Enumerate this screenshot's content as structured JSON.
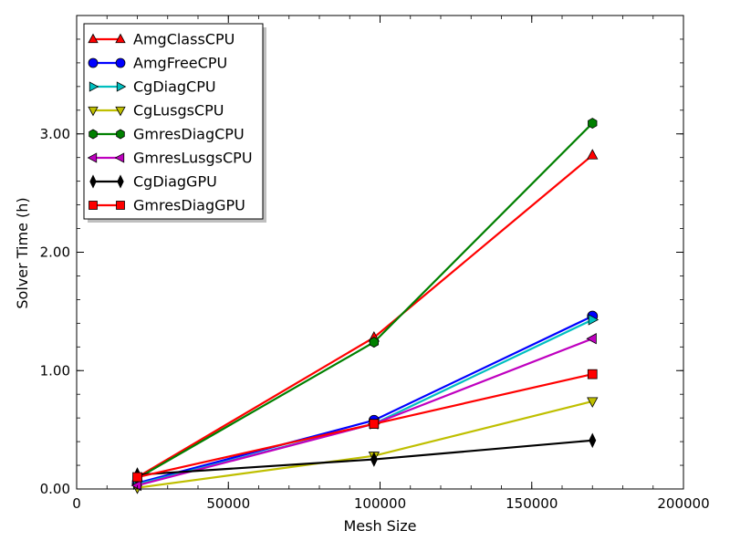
{
  "chart_data": {
    "type": "line",
    "title": "",
    "xlabel": "Mesh Size",
    "ylabel": "Solver Time (h)",
    "xlim": [
      0,
      200000
    ],
    "ylim": [
      0,
      4.0
    ],
    "x_ticks": [
      0,
      50000,
      100000,
      150000,
      200000
    ],
    "x_tick_labels": [
      "0",
      "50000",
      "100000",
      "150000",
      "200000"
    ],
    "y_ticks": [
      0,
      1,
      2,
      3
    ],
    "y_tick_labels": [
      "0.00",
      "1.00",
      "2.00",
      "3.00"
    ],
    "grid": false,
    "legend_position": "top-left",
    "x": [
      20000,
      98000,
      170000
    ],
    "series": [
      {
        "name": "AmgClassCPU",
        "values": [
          0.1,
          1.28,
          2.82
        ],
        "color": "#ff0000",
        "marker": "triangle-up"
      },
      {
        "name": "AmgFreeCPU",
        "values": [
          0.05,
          0.58,
          1.46
        ],
        "color": "#0000ff",
        "marker": "circle"
      },
      {
        "name": "CgDiagCPU",
        "values": [
          0.04,
          0.55,
          1.43
        ],
        "color": "#00bfbf",
        "marker": "triangle-right"
      },
      {
        "name": "CgLusgsCPU",
        "values": [
          0.01,
          0.28,
          0.74
        ],
        "color": "#bfbf00",
        "marker": "triangle-down"
      },
      {
        "name": "GmresDiagCPU",
        "values": [
          0.09,
          1.24,
          3.09
        ],
        "color": "#008000",
        "marker": "hexagon"
      },
      {
        "name": "GmresLusgsCPU",
        "values": [
          0.03,
          0.55,
          1.27
        ],
        "color": "#bf00bf",
        "marker": "triangle-left"
      },
      {
        "name": "CgDiagGPU",
        "values": [
          0.12,
          0.25,
          0.41
        ],
        "color": "#000000",
        "marker": "diamond"
      },
      {
        "name": "GmresDiagGPU",
        "values": [
          0.1,
          0.55,
          0.97
        ],
        "color": "#ff0000",
        "marker": "square"
      }
    ]
  }
}
